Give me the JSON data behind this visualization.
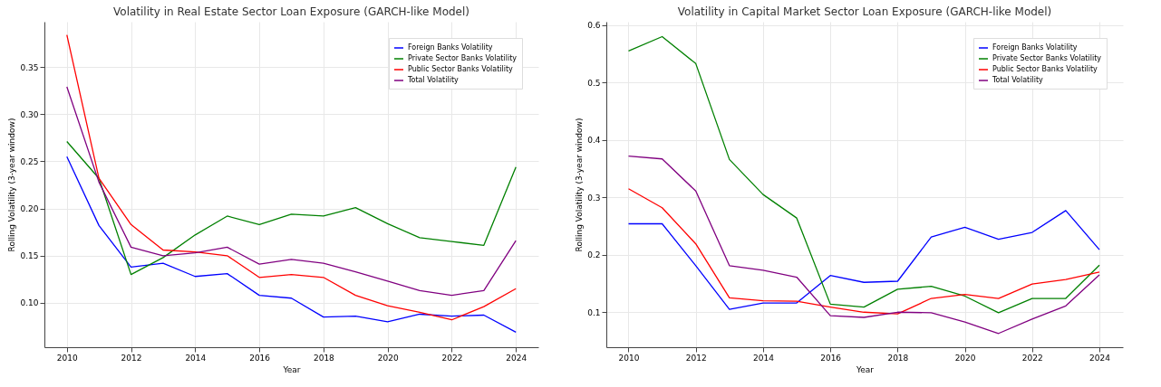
{
  "chart_data": [
    {
      "type": "line",
      "title": "Volatility in Real Estate Sector Loan Exposure (GARCH-like Model)",
      "xlabel": "Year",
      "ylabel": "Rolling Volatility (3-year window)",
      "x": [
        2010,
        2011,
        2012,
        2013,
        2014,
        2015,
        2016,
        2017,
        2018,
        2019,
        2020,
        2021,
        2022,
        2023,
        2024
      ],
      "xlim": [
        2009.3,
        2024.7
      ],
      "xticks": [
        2010,
        2012,
        2014,
        2016,
        2018,
        2020,
        2022,
        2024
      ],
      "ylim": [
        0.053,
        0.398
      ],
      "yticks": [
        {
          "value": 0.1,
          "label": "0.10"
        },
        {
          "value": 0.15,
          "label": "0.15"
        },
        {
          "value": 0.2,
          "label": "0.20"
        },
        {
          "value": 0.25,
          "label": "0.25"
        },
        {
          "value": 0.3,
          "label": "0.30"
        },
        {
          "value": 0.35,
          "label": "0.35"
        }
      ],
      "grid": true,
      "legend": "top right",
      "line_style": "solid",
      "series": [
        {
          "name": "Foreign Banks Volatility",
          "color": "#0000ff",
          "values": [
            0.255,
            0.182,
            0.138,
            0.142,
            0.128,
            0.131,
            0.108,
            0.105,
            0.085,
            0.086,
            0.08,
            0.088,
            0.086,
            0.087,
            0.069
          ]
        },
        {
          "name": "Private Sector Banks Volatility",
          "color": "#008000",
          "values": [
            0.271,
            0.232,
            0.13,
            0.148,
            0.172,
            0.192,
            0.183,
            0.194,
            0.192,
            0.201,
            0.184,
            0.169,
            0.165,
            0.161,
            0.244
          ]
        },
        {
          "name": "Public Sector Banks Volatility",
          "color": "#ff0000",
          "values": [
            0.384,
            0.232,
            0.183,
            0.156,
            0.154,
            0.15,
            0.127,
            0.13,
            0.127,
            0.108,
            0.097,
            0.09,
            0.082,
            0.096,
            0.115
          ]
        },
        {
          "name": "Total Volatility",
          "color": "#800080",
          "values": [
            0.329,
            0.228,
            0.159,
            0.15,
            0.153,
            0.159,
            0.141,
            0.146,
            0.142,
            0.133,
            0.123,
            0.113,
            0.108,
            0.113,
            0.166
          ]
        }
      ]
    },
    {
      "type": "line",
      "title": "Volatility in Capital Market Sector Loan Exposure (GARCH-like Model)",
      "xlabel": "Year",
      "ylabel": "Rolling Volatility (3-year window)",
      "x": [
        2010,
        2011,
        2012,
        2013,
        2014,
        2015,
        2016,
        2017,
        2018,
        2019,
        2020,
        2021,
        2022,
        2023,
        2024
      ],
      "xlim": [
        2009.34,
        2024.7
      ],
      "xticks": [
        2010,
        2012,
        2014,
        2016,
        2018,
        2020,
        2022,
        2024
      ],
      "ylim": [
        0.039,
        0.606
      ],
      "yticks": [
        0.1,
        0.2,
        0.3,
        0.4,
        0.5,
        0.6
      ],
      "grid": true,
      "legend": "top right",
      "line_style": "solid",
      "series": [
        {
          "name": "Foreign Banks Volatility",
          "color": "#0000ff",
          "values": [
            0.254,
            0.254,
            0.181,
            0.105,
            0.116,
            0.116,
            0.164,
            0.152,
            0.154,
            0.231,
            0.248,
            0.227,
            0.239,
            0.277,
            0.209
          ]
        },
        {
          "name": "Private Sector Banks Volatility",
          "color": "#008000",
          "values": [
            0.555,
            0.58,
            0.533,
            0.366,
            0.305,
            0.264,
            0.114,
            0.109,
            0.14,
            0.145,
            0.128,
            0.099,
            0.124,
            0.124,
            0.182
          ]
        },
        {
          "name": "Public Sector Banks Volatility",
          "color": "#ff0000",
          "values": [
            0.315,
            0.282,
            0.219,
            0.125,
            0.12,
            0.119,
            0.109,
            0.1,
            0.097,
            0.124,
            0.131,
            0.124,
            0.149,
            0.157,
            0.17
          ]
        },
        {
          "name": "Total Volatility",
          "color": "#800080",
          "values": [
            0.372,
            0.367,
            0.311,
            0.181,
            0.173,
            0.161,
            0.094,
            0.091,
            0.1,
            0.099,
            0.083,
            0.063,
            0.088,
            0.111,
            0.165
          ]
        }
      ]
    }
  ]
}
